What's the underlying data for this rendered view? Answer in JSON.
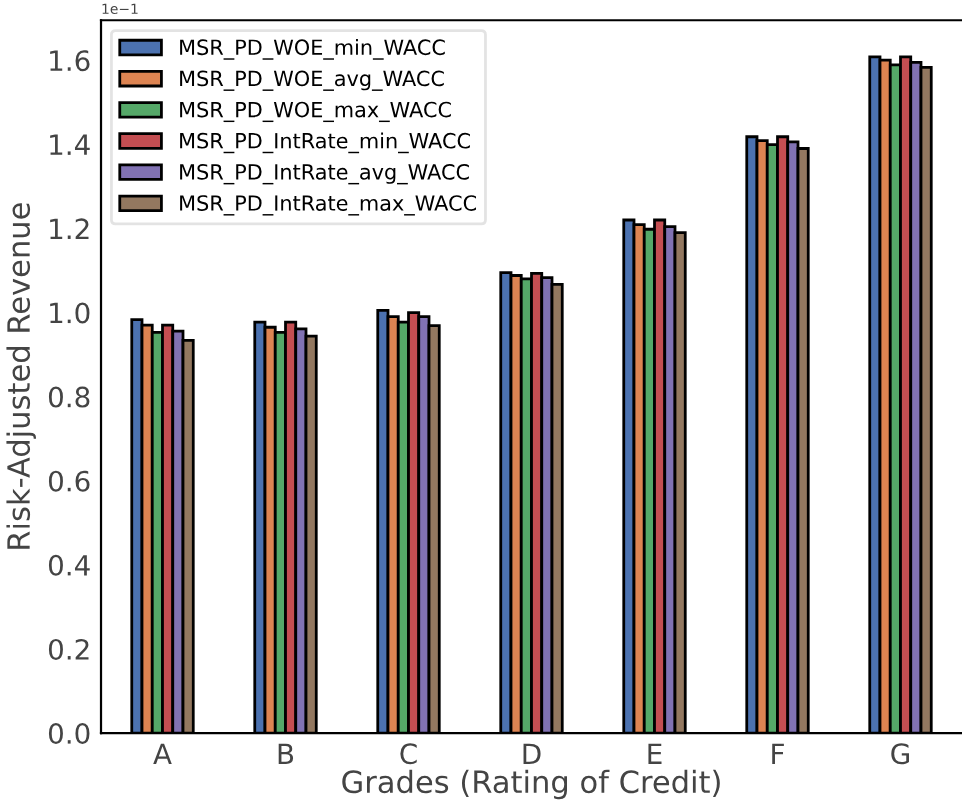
{
  "chart_data": {
    "type": "bar",
    "xlabel": "Grades (Rating of Credit)",
    "ylabel": "Risk-Adjusted Revenue",
    "categories": [
      "A",
      "B",
      "C",
      "D",
      "E",
      "F",
      "G"
    ],
    "series": [
      {
        "name": "MSR_PD_WOE_min_WACC",
        "color": "#4c72b0",
        "values": [
          0.983,
          0.977,
          1.005,
          1.095,
          1.22,
          1.418,
          1.608
        ]
      },
      {
        "name": "MSR_PD_WOE_avg_WACC",
        "color": "#dd8452",
        "values": [
          0.97,
          0.965,
          0.99,
          1.088,
          1.209,
          1.409,
          1.6
        ]
      },
      {
        "name": "MSR_PD_WOE_max_WACC",
        "color": "#55a868",
        "values": [
          0.953,
          0.953,
          0.977,
          1.08,
          1.198,
          1.399,
          1.589
        ]
      },
      {
        "name": "MSR_PD_IntRate_min_WACC",
        "color": "#c44e52",
        "values": [
          0.97,
          0.977,
          1.0,
          1.093,
          1.22,
          1.418,
          1.608
        ]
      },
      {
        "name": "MSR_PD_IntRate_avg_WACC",
        "color": "#8172b3",
        "values": [
          0.956,
          0.961,
          0.99,
          1.083,
          1.204,
          1.406,
          1.595
        ]
      },
      {
        "name": "MSR_PD_IntRate_max_WACC",
        "color": "#937860",
        "values": [
          0.934,
          0.944,
          0.969,
          1.067,
          1.19,
          1.39,
          1.583
        ]
      }
    ],
    "ylim": [
      0,
      1.695
    ],
    "yticks": [
      {
        "value": 0,
        "label": "0.0"
      },
      0.2,
      0.4,
      0.6,
      0.8,
      {
        "value": 1,
        "label": "1.0"
      },
      1.2,
      1.4,
      1.6
    ],
    "annotations": [
      "1e−1"
    ],
    "legend": "top left",
    "grid": false
  }
}
